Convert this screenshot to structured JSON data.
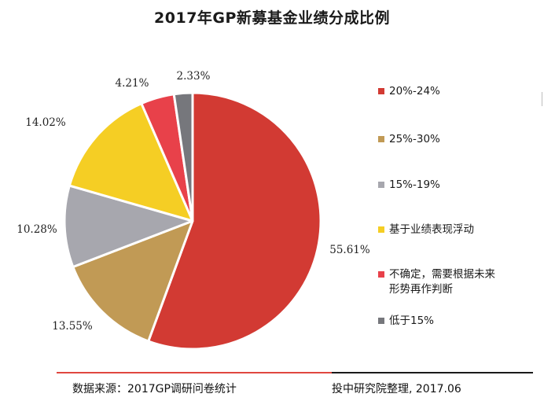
{
  "chart_data": {
    "type": "pie",
    "title": "2017年GP新募基金业绩分成比例",
    "categories": [
      "20%-24%",
      "25%-30%",
      "15%-19%",
      "基于业绩表现浮动",
      "不确定，需要根据未来形势再作判断",
      "低于15%"
    ],
    "values": [
      55.61,
      13.55,
      10.28,
      14.02,
      4.21,
      2.33
    ],
    "value_labels": [
      "55.61%",
      "13.55%",
      "10.28%",
      "14.02%",
      "4.21%",
      "2.33%"
    ],
    "colors": [
      "#d23a33",
      "#c19a55",
      "#a7a7ae",
      "#f5ce24",
      "#e8414a",
      "#76777c"
    ],
    "legend": {
      "placement": "right",
      "items": [
        "20%-24%",
        "25%-30%",
        "15%-19%",
        "基于业绩表现浮动",
        "不确定，需要根据未来形势再作判断",
        "低于15%"
      ]
    }
  },
  "legend_display": [
    "20%-24%",
    "25%-30%",
    "15%-19%",
    "基于业绩表现浮动",
    "不确定，需要根据未来\n形势再作判断",
    "低于15%"
  ],
  "footer": {
    "source": "数据来源：2017GP调研问卷统计",
    "organization": "投中研究院整理, 2017.06"
  }
}
